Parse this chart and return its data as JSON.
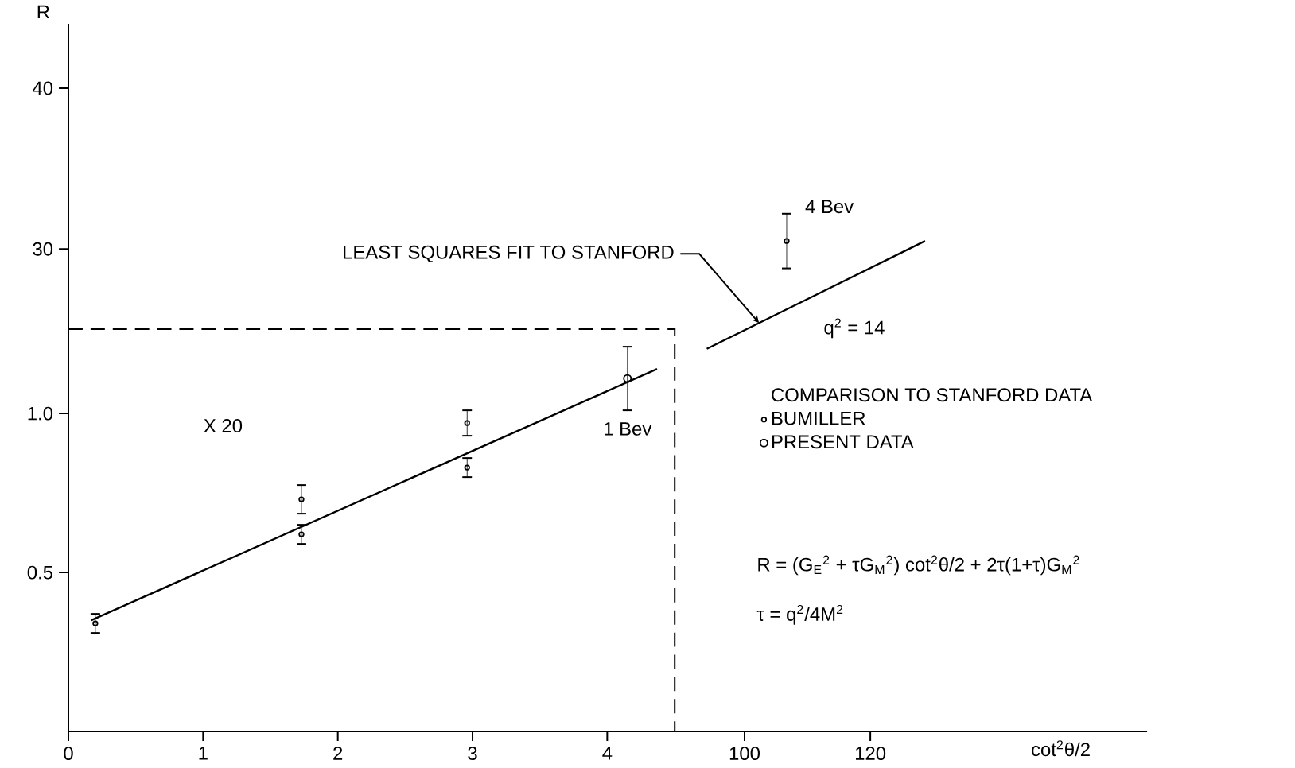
{
  "chart_data": [
    {
      "type": "scatter",
      "xlim": [
        0,
        4.37
      ],
      "ylim": [
        0,
        1.265
      ],
      "xticks": [
        0,
        1,
        2,
        3,
        4
      ],
      "yticks": [
        {
          "value": 0.5,
          "label": "0.5"
        },
        {
          "value": 1.0,
          "label": "1.0"
        }
      ],
      "legend": "right",
      "legend_title": "COMPARISON TO STANFORD DATA",
      "grid": false,
      "annotations": [
        "X 20",
        {
          "text": "1 Bev",
          "x": 4.15,
          "y": 1.11
        }
      ],
      "series": [
        {
          "name": "BUMILLER",
          "color": "#000000",
          "marker": "circle",
          "x": [
            0.2,
            1.73,
            1.73,
            2.96,
            2.96
          ],
          "values": [
            0.34,
            0.62,
            0.73,
            0.97,
            0.83
          ],
          "errors": [
            0.03,
            0.03,
            0.045,
            0.04,
            0.03
          ]
        },
        {
          "name": "PRESENT DATA",
          "color": "#000000",
          "marker": "circle",
          "x": [
            4.15
          ],
          "values": [
            1.11
          ],
          "errors": [
            0.1
          ]
        },
        {
          "type": "line",
          "color": "#000000",
          "marker": "none",
          "x": [
            0.17,
            4.37
          ],
          "values": [
            0.35,
            1.14
          ]
        }
      ]
    },
    {
      "type": "scatter",
      "xlim": [
        -7.5,
        164
      ],
      "ylim": [
        0,
        44
      ],
      "xticks": [
        100,
        120
      ],
      "yticks": [
        30,
        40
      ],
      "xlabel": "cot$^{2}$θ/2",
      "ylabel": "R",
      "grid": false,
      "annotations": [
        {
          "text": "4 Bev",
          "x": 106.7,
          "y": 30.5
        },
        {
          "text": "LEAST SQUARES FIT TO STANFORD",
          "x": 102.3,
          "y": 25.4
        },
        "q$^{2}$ = 14",
        "R = (G$_{E}$$^{2}$ + τG$_{M}$$^{2}$) cot$^{2}$θ/2 + 2τ(1+τ)G$_{M}$$^{2}$",
        "τ = q$^{2}$/4M$^{2}$"
      ],
      "series": [
        {
          "color": "#000000",
          "marker": "circle",
          "x": [
            106.7
          ],
          "values": [
            30.5
          ],
          "errors": [
            1.7
          ]
        },
        {
          "type": "line",
          "color": "#000000",
          "marker": "none",
          "x": [
            94,
            128.7
          ],
          "values": [
            23.8,
            30.5
          ]
        }
      ]
    }
  ]
}
